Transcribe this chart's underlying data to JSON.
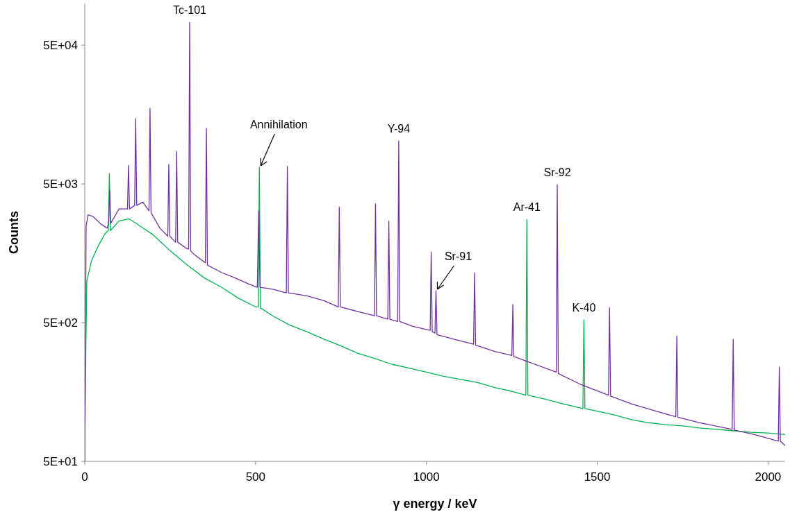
{
  "chart_data": {
    "type": "line",
    "xlabel": "γ energy / keV",
    "ylabel": "Counts",
    "log": "y",
    "grid": false,
    "line_style": "solid",
    "xlim": [
      0,
      2050
    ],
    "xticks": [
      0,
      500,
      1000,
      1500,
      2000
    ],
    "ylim": [
      50,
      100000
    ],
    "yticks": [
      {
        "value": 50,
        "label": "5E+01"
      },
      {
        "value": 500,
        "label": "5E+02"
      },
      {
        "value": 5000,
        "label": "5E+03"
      },
      {
        "value": 50000,
        "label": "5E+04"
      }
    ],
    "series": [
      {
        "color": "#00b050",
        "x": [
          0,
          3,
          6,
          20,
          40,
          60,
          69,
          72,
          75,
          100,
          130,
          160,
          200,
          250,
          300,
          350,
          400,
          450,
          500,
          508,
          511,
          514,
          550,
          600,
          650,
          700,
          750,
          800,
          850,
          900,
          950,
          1000,
          1050,
          1100,
          1150,
          1200,
          1250,
          1291,
          1294,
          1297,
          1350,
          1400,
          1458,
          1461,
          1464,
          1500,
          1550,
          1600,
          1650,
          1700,
          1750,
          1800,
          1850,
          1900,
          1950,
          2000,
          2050
        ],
        "values": [
          50,
          300,
          1000,
          1400,
          1800,
          2200,
          2300,
          5940,
          2300,
          2700,
          2800,
          2500,
          2150,
          1650,
          1300,
          1050,
          900,
          750,
          650,
          650,
          6600,
          640,
          560,
          480,
          430,
          380,
          340,
          300,
          275,
          250,
          235,
          220,
          205,
          195,
          185,
          170,
          160,
          150,
          2770,
          150,
          140,
          130,
          120,
          524,
          120,
          115,
          108,
          100,
          95,
          92,
          90,
          87,
          85,
          83,
          81,
          80,
          78
        ]
      },
      {
        "color": "#7030a0",
        "x": [
          0,
          4,
          10,
          25,
          45,
          65,
          70,
          73,
          76,
          100,
          125,
          128,
          131,
          146,
          149,
          152,
          170,
          188,
          191,
          194,
          220,
          243,
          246,
          249,
          266,
          269,
          272,
          300,
          304,
          307,
          310,
          320,
          353,
          356,
          359,
          400,
          440,
          480,
          505,
          509,
          513,
          550,
          590,
          593,
          596,
          650,
          700,
          742,
          745,
          748,
          800,
          848,
          851,
          854,
          887,
          890,
          893,
          916,
          919,
          922,
          960,
          1011,
          1014,
          1017,
          1025,
          1028,
          1031,
          1080,
          1138,
          1141,
          1144,
          1200,
          1250,
          1253,
          1256,
          1300,
          1380,
          1383,
          1386,
          1450,
          1533,
          1536,
          1539,
          1600,
          1700,
          1730,
          1733,
          1736,
          1800,
          1895,
          1898,
          1901,
          1960,
          2030,
          2033,
          2036,
          2050
        ],
        "values": [
          50,
          2500,
          3000,
          2900,
          2600,
          2400,
          2600,
          4500,
          2600,
          3300,
          3300,
          6800,
          3300,
          3500,
          14800,
          3500,
          3700,
          3200,
          17600,
          3100,
          2400,
          2100,
          6900,
          2100,
          1900,
          8600,
          1900,
          1700,
          1700,
          73000,
          1650,
          1550,
          1350,
          12600,
          1300,
          1150,
          1050,
          950,
          900,
          3200,
          900,
          870,
          820,
          6680,
          820,
          780,
          720,
          650,
          3400,
          650,
          600,
          560,
          3600,
          560,
          530,
          2700,
          530,
          510,
          10200,
          510,
          470,
          440,
          1610,
          430,
          420,
          850,
          410,
          380,
          350,
          1140,
          345,
          310,
          290,
          675,
          285,
          260,
          220,
          4940,
          215,
          180,
          150,
          640,
          148,
          130,
          110,
          105,
          400,
          104,
          95,
          85,
          380,
          84,
          78,
          70,
          240,
          70,
          65
        ]
      }
    ],
    "annotations": [
      {
        "text": "Tc-101",
        "x": 307,
        "y": 73000
      },
      {
        "text": "Annihilation",
        "x": 511,
        "y": 6600
      },
      {
        "text": "Y-94",
        "x": 919,
        "y": 10200
      },
      {
        "text": "Sr-92",
        "x": 1383,
        "y": 4940
      },
      {
        "text": "Ar-41",
        "x": 1294,
        "y": 2770
      },
      {
        "text": "Sr-91",
        "x": 1028,
        "y": 850
      },
      {
        "text": "K-40",
        "x": 1461,
        "y": 524
      }
    ]
  }
}
